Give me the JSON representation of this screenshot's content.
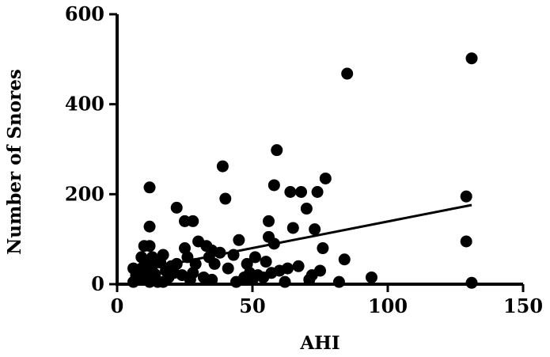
{
  "chart_data": {
    "type": "scatter",
    "xlabel": "AHI",
    "ylabel": "Number of Snores",
    "xlim": [
      0,
      150
    ],
    "ylim": [
      0,
      600
    ],
    "x_ticks": [
      "0",
      "50",
      "100",
      "150"
    ],
    "y_ticks": [
      "0",
      "200",
      "400",
      "600"
    ],
    "grid": false,
    "legend": "none",
    "trend_line": {
      "x": [
        5,
        131
      ],
      "y": [
        27,
        176
      ]
    },
    "points": [
      {
        "x": 6,
        "y": 35
      },
      {
        "x": 6,
        "y": 5
      },
      {
        "x": 7,
        "y": 20
      },
      {
        "x": 8,
        "y": 25
      },
      {
        "x": 8,
        "y": 12
      },
      {
        "x": 9,
        "y": 35
      },
      {
        "x": 9,
        "y": 60
      },
      {
        "x": 10,
        "y": 85
      },
      {
        "x": 10,
        "y": 15
      },
      {
        "x": 11,
        "y": 30
      },
      {
        "x": 11,
        "y": 50
      },
      {
        "x": 12,
        "y": 215
      },
      {
        "x": 12,
        "y": 128
      },
      {
        "x": 12,
        "y": 85
      },
      {
        "x": 12,
        "y": 5
      },
      {
        "x": 13,
        "y": 60
      },
      {
        "x": 13,
        "y": 40
      },
      {
        "x": 14,
        "y": 10
      },
      {
        "x": 14,
        "y": 22
      },
      {
        "x": 15,
        "y": 5
      },
      {
        "x": 16,
        "y": 48
      },
      {
        "x": 17,
        "y": 65
      },
      {
        "x": 17,
        "y": 5
      },
      {
        "x": 18,
        "y": 30
      },
      {
        "x": 19,
        "y": 15
      },
      {
        "x": 20,
        "y": 40
      },
      {
        "x": 21,
        "y": 25
      },
      {
        "x": 22,
        "y": 45
      },
      {
        "x": 22,
        "y": 170
      },
      {
        "x": 24,
        "y": 20
      },
      {
        "x": 25,
        "y": 140
      },
      {
        "x": 25,
        "y": 80
      },
      {
        "x": 26,
        "y": 60
      },
      {
        "x": 27,
        "y": 10
      },
      {
        "x": 28,
        "y": 25
      },
      {
        "x": 28,
        "y": 140
      },
      {
        "x": 29,
        "y": 45
      },
      {
        "x": 30,
        "y": 95
      },
      {
        "x": 32,
        "y": 15
      },
      {
        "x": 33,
        "y": 85
      },
      {
        "x": 34,
        "y": 60
      },
      {
        "x": 35,
        "y": 75
      },
      {
        "x": 35,
        "y": 10
      },
      {
        "x": 36,
        "y": 45
      },
      {
        "x": 38,
        "y": 70
      },
      {
        "x": 39,
        "y": 262
      },
      {
        "x": 40,
        "y": 190
      },
      {
        "x": 41,
        "y": 35
      },
      {
        "x": 43,
        "y": 65
      },
      {
        "x": 44,
        "y": 5
      },
      {
        "x": 45,
        "y": 98
      },
      {
        "x": 47,
        "y": 15
      },
      {
        "x": 48,
        "y": 45
      },
      {
        "x": 49,
        "y": 25
      },
      {
        "x": 50,
        "y": 10
      },
      {
        "x": 51,
        "y": 60
      },
      {
        "x": 52,
        "y": 20
      },
      {
        "x": 54,
        "y": 15
      },
      {
        "x": 55,
        "y": 50
      },
      {
        "x": 56,
        "y": 140
      },
      {
        "x": 56,
        "y": 105
      },
      {
        "x": 57,
        "y": 25
      },
      {
        "x": 58,
        "y": 220
      },
      {
        "x": 58,
        "y": 90
      },
      {
        "x": 59,
        "y": 298
      },
      {
        "x": 60,
        "y": 30
      },
      {
        "x": 62,
        "y": 5
      },
      {
        "x": 63,
        "y": 35
      },
      {
        "x": 64,
        "y": 205
      },
      {
        "x": 65,
        "y": 125
      },
      {
        "x": 67,
        "y": 40
      },
      {
        "x": 68,
        "y": 205
      },
      {
        "x": 70,
        "y": 168
      },
      {
        "x": 71,
        "y": 10
      },
      {
        "x": 72,
        "y": 20
      },
      {
        "x": 73,
        "y": 122
      },
      {
        "x": 74,
        "y": 205
      },
      {
        "x": 75,
        "y": 30
      },
      {
        "x": 76,
        "y": 80
      },
      {
        "x": 77,
        "y": 235
      },
      {
        "x": 82,
        "y": 5
      },
      {
        "x": 84,
        "y": 55
      },
      {
        "x": 85,
        "y": 468
      },
      {
        "x": 94,
        "y": 15
      },
      {
        "x": 129,
        "y": 195
      },
      {
        "x": 129,
        "y": 95
      },
      {
        "x": 131,
        "y": 502
      },
      {
        "x": 131,
        "y": 3
      }
    ]
  }
}
